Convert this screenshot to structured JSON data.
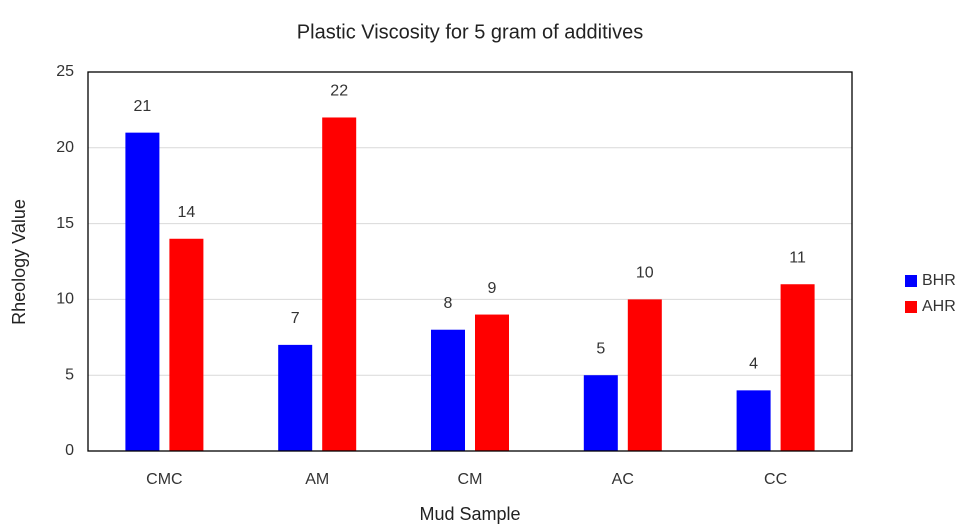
{
  "chart_data": {
    "type": "bar",
    "title": "Plastic Viscosity for 5 gram of additives",
    "x_label": "Mud Sample",
    "y_label": "Rheology Value",
    "categories": [
      "CMC",
      "AM",
      "CM",
      "AC",
      "CC"
    ],
    "series": [
      {
        "name": "BHR",
        "color": "#0000ff",
        "values": [
          21,
          7,
          8,
          5,
          4
        ]
      },
      {
        "name": "AHR",
        "color": "#ff0000",
        "values": [
          14,
          22,
          9,
          10,
          11
        ]
      }
    ],
    "ylim": [
      0,
      25
    ],
    "yticks": [
      0,
      5,
      10,
      15,
      20,
      25
    ],
    "grid": true,
    "legend": "right"
  }
}
